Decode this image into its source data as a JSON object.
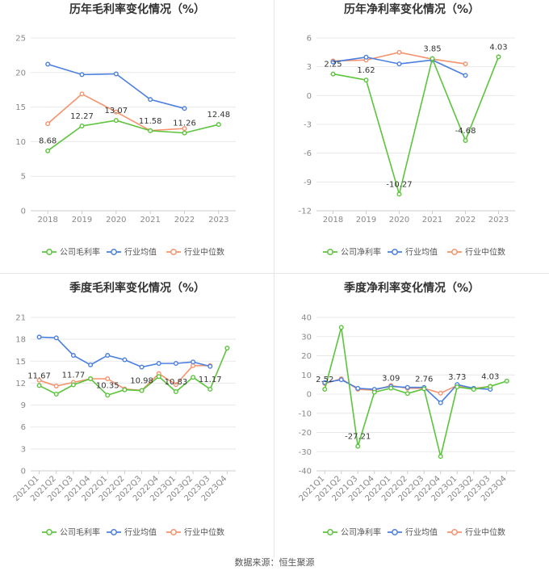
{
  "source_label": "数据来源：恒生聚源",
  "colors": {
    "company": "#5bc43b",
    "avg": "#4a7fe0",
    "median": "#f4936d"
  },
  "legend": {
    "company_gross": "公司毛利率",
    "company_net": "公司净利率",
    "avg": "行业均值",
    "median": "行业中位数"
  },
  "chart_data": [
    {
      "type": "line",
      "title": "历年毛利率变化情况（%）",
      "x": [
        "2018",
        "2019",
        "2020",
        "2021",
        "2022",
        "2023"
      ],
      "ylim": [
        0,
        25
      ],
      "yticks": [
        0,
        5,
        10,
        15,
        20,
        25
      ],
      "series": [
        {
          "name": "公司毛利率",
          "values": [
            8.68,
            12.27,
            13.07,
            11.58,
            11.26,
            12.48
          ],
          "labels": [
            true,
            true,
            true,
            true,
            true,
            true
          ]
        },
        {
          "name": "行业均值",
          "values": [
            21.2,
            19.7,
            19.8,
            16.1,
            14.8,
            null
          ]
        },
        {
          "name": "行业中位数",
          "values": [
            12.6,
            16.9,
            14.3,
            11.6,
            11.9,
            null
          ]
        }
      ]
    },
    {
      "type": "line",
      "title": "历年净利率变化情况（%）",
      "x": [
        "2018",
        "2019",
        "2020",
        "2021",
        "2022",
        "2023"
      ],
      "ylim": [
        -12,
        6
      ],
      "yticks": [
        -12,
        -9,
        -6,
        -3,
        0,
        3,
        6
      ],
      "series": [
        {
          "name": "公司净利率",
          "values": [
            2.25,
            1.62,
            -10.27,
            3.85,
            -4.68,
            4.03
          ],
          "labels": [
            true,
            true,
            true,
            true,
            true,
            true
          ]
        },
        {
          "name": "行业均值",
          "values": [
            3.5,
            4.0,
            3.3,
            3.7,
            2.1,
            null
          ]
        },
        {
          "name": "行业中位数",
          "values": [
            3.6,
            3.7,
            4.5,
            3.8,
            3.3,
            null
          ]
        }
      ]
    },
    {
      "type": "line",
      "title": "季度毛利率变化情况（%）",
      "x": [
        "2021Q1",
        "2021Q2",
        "2021Q3",
        "2021Q4",
        "2022Q1",
        "2022Q2",
        "2022Q3",
        "2022Q4",
        "2023Q1",
        "2023Q2",
        "2023Q3",
        "2023Q4"
      ],
      "ylim": [
        0,
        21
      ],
      "yticks": [
        0,
        3,
        6,
        9,
        12,
        15,
        18,
        21
      ],
      "series": [
        {
          "name": "公司毛利率",
          "values": [
            11.67,
            10.5,
            11.77,
            12.6,
            10.35,
            11.1,
            10.98,
            12.9,
            10.83,
            12.8,
            11.17,
            16.8
          ],
          "labels": [
            true,
            false,
            true,
            false,
            true,
            false,
            true,
            false,
            true,
            false,
            true,
            false
          ]
        },
        {
          "name": "行业均值",
          "values": [
            18.3,
            18.2,
            15.8,
            14.5,
            15.8,
            15.2,
            14.2,
            14.7,
            14.7,
            14.9,
            14.3,
            null
          ]
        },
        {
          "name": "行业中位数",
          "values": [
            12.4,
            11.6,
            12.1,
            12.6,
            12.6,
            11.2,
            11.0,
            13.3,
            11.8,
            14.4,
            14.4,
            null
          ]
        }
      ]
    },
    {
      "type": "line",
      "title": "季度净利率变化情况（%）",
      "x": [
        "2021Q1",
        "2021Q2",
        "2021Q3",
        "2021Q4",
        "2022Q1",
        "2022Q2",
        "2022Q3",
        "2022Q4",
        "2023Q1",
        "2023Q2",
        "2023Q3",
        "2023Q4"
      ],
      "ylim": [
        -40,
        40
      ],
      "yticks": [
        -40,
        -30,
        -20,
        -10,
        0,
        10,
        20,
        30,
        40
      ],
      "series": [
        {
          "name": "公司净利率",
          "values": [
            2.52,
            34.8,
            -27.21,
            1.0,
            3.09,
            0.3,
            2.76,
            -32.5,
            3.73,
            2.5,
            4.03,
            6.8
          ],
          "labels": [
            true,
            false,
            true,
            false,
            true,
            false,
            true,
            false,
            true,
            false,
            true,
            false
          ]
        },
        {
          "name": "行业均值",
          "values": [
            6.0,
            7.5,
            3.0,
            2.5,
            4.0,
            3.5,
            3.5,
            -4.5,
            5.0,
            3.0,
            2.5,
            null
          ]
        },
        {
          "name": "行业中位数",
          "values": [
            5.5,
            8.0,
            2.5,
            2.0,
            4.5,
            3.0,
            3.0,
            0.5,
            4.5,
            3.0,
            4.0,
            null
          ]
        }
      ]
    }
  ]
}
